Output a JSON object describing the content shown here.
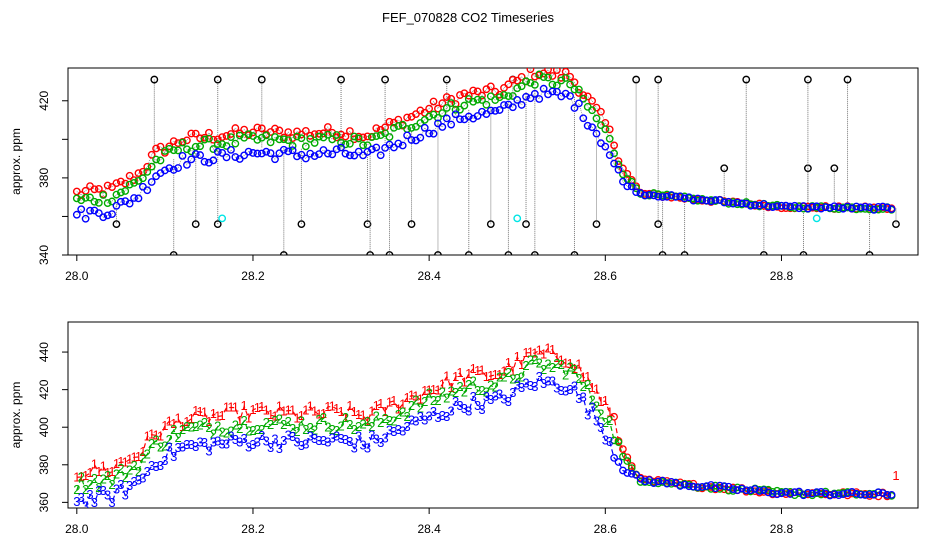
{
  "title": "FEF_070828  CO2 Timeseries",
  "colors": {
    "s1": "#ff0000",
    "s2": "#00aa00",
    "s3": "#0000ff",
    "black": "#000000",
    "cyan": "#00e5e5"
  },
  "chart_data": [
    {
      "type": "scatter",
      "ylabel": "approx. ppm",
      "xlim": [
        27.99,
        28.955
      ],
      "ylim": [
        340,
        437
      ],
      "xticks": [
        28.0,
        28.2,
        28.4,
        28.6,
        28.8
      ],
      "xtick_labels": [
        "28.0",
        "28.2",
        "28.4",
        "28.6",
        "28.8"
      ],
      "yticks": [
        340,
        380,
        420
      ],
      "ytick_labels": [
        "340",
        "380",
        "420"
      ],
      "yminor_ticks": [
        360,
        400
      ],
      "x_start": 28.0,
      "x_step": 0.005,
      "count": 186,
      "anchors": [
        [
          28.0,
          364
        ],
        [
          28.04,
          366
        ],
        [
          28.07,
          374
        ],
        [
          28.09,
          385
        ],
        [
          28.12,
          392
        ],
        [
          28.16,
          394
        ],
        [
          28.2,
          396
        ],
        [
          28.25,
          395
        ],
        [
          28.3,
          396
        ],
        [
          28.33,
          394
        ],
        [
          28.36,
          400
        ],
        [
          28.4,
          408
        ],
        [
          28.44,
          415
        ],
        [
          28.48,
          417
        ],
        [
          28.52,
          427
        ],
        [
          28.56,
          425
        ],
        [
          28.585,
          410
        ],
        [
          28.6,
          400
        ],
        [
          28.62,
          380
        ],
        [
          28.64,
          372
        ],
        [
          28.7,
          369
        ],
        [
          28.8,
          365
        ],
        [
          28.95,
          364
        ]
      ],
      "series": [
        {
          "name": "1",
          "offset": 8,
          "noise": 3,
          "color": "red"
        },
        {
          "name": "2",
          "offset": 4,
          "noise": 3,
          "color": "green"
        },
        {
          "name": "3",
          "offset": -3,
          "noise": 3,
          "color": "blue"
        }
      ],
      "black_spikes": [
        {
          "x": 28.045,
          "y": 356
        },
        {
          "x": 28.088,
          "y": 431
        },
        {
          "x": 28.11,
          "y": 340
        },
        {
          "x": 28.135,
          "y": 356
        },
        {
          "x": 28.16,
          "y": 431
        },
        {
          "x": 28.16,
          "y": 356
        },
        {
          "x": 28.21,
          "y": 431
        },
        {
          "x": 28.235,
          "y": 340
        },
        {
          "x": 28.255,
          "y": 356
        },
        {
          "x": 28.3,
          "y": 431
        },
        {
          "x": 28.33,
          "y": 356
        },
        {
          "x": 28.333,
          "y": 340
        },
        {
          "x": 28.35,
          "y": 431
        },
        {
          "x": 28.355,
          "y": 340
        },
        {
          "x": 28.38,
          "y": 356
        },
        {
          "x": 28.41,
          "y": 340
        },
        {
          "x": 28.42,
          "y": 431
        },
        {
          "x": 28.445,
          "y": 340
        },
        {
          "x": 28.47,
          "y": 356
        },
        {
          "x": 28.49,
          "y": 340
        },
        {
          "x": 28.495,
          "y": 431
        },
        {
          "x": 28.51,
          "y": 356
        },
        {
          "x": 28.52,
          "y": 340
        },
        {
          "x": 28.565,
          "y": 340
        },
        {
          "x": 28.59,
          "y": 356
        },
        {
          "x": 28.635,
          "y": 431
        },
        {
          "x": 28.66,
          "y": 431
        },
        {
          "x": 28.66,
          "y": 356
        },
        {
          "x": 28.665,
          "y": 340
        },
        {
          "x": 28.69,
          "y": 340
        },
        {
          "x": 28.735,
          "y": 385
        },
        {
          "x": 28.76,
          "y": 431
        },
        {
          "x": 28.78,
          "y": 340
        },
        {
          "x": 28.825,
          "y": 340
        },
        {
          "x": 28.83,
          "y": 385
        },
        {
          "x": 28.83,
          "y": 431
        },
        {
          "x": 28.86,
          "y": 385
        },
        {
          "x": 28.875,
          "y": 431
        },
        {
          "x": 28.9,
          "y": 340
        },
        {
          "x": 28.93,
          "y": 356
        }
      ],
      "cyan_points": [
        {
          "x": 28.165,
          "y": 359
        },
        {
          "x": 28.5,
          "y": 359
        },
        {
          "x": 28.84,
          "y": 359
        }
      ],
      "side_labels": {
        "left": "",
        "right": ""
      }
    },
    {
      "type": "line",
      "ylabel": "approx. ppm",
      "xlim": [
        27.99,
        28.955
      ],
      "ylim": [
        357,
        456
      ],
      "xticks": [
        28.0,
        28.2,
        28.4,
        28.6,
        28.8
      ],
      "xtick_labels": [
        "28.0",
        "28.2",
        "28.4",
        "28.6",
        "28.8"
      ],
      "yticks": [
        360,
        380,
        400,
        420,
        440
      ],
      "ytick_labels": [
        "360",
        "380",
        "400",
        "420",
        "440"
      ],
      "x_start": 28.0,
      "x_step": 0.005,
      "count": 186,
      "anchors": [
        [
          28.0,
          364
        ],
        [
          28.04,
          366
        ],
        [
          28.07,
          374
        ],
        [
          28.09,
          385
        ],
        [
          28.12,
          392
        ],
        [
          28.16,
          394
        ],
        [
          28.2,
          396
        ],
        [
          28.25,
          395
        ],
        [
          28.3,
          396
        ],
        [
          28.33,
          394
        ],
        [
          28.36,
          400
        ],
        [
          28.4,
          408
        ],
        [
          28.44,
          415
        ],
        [
          28.48,
          417
        ],
        [
          28.52,
          427
        ],
        [
          28.56,
          425
        ],
        [
          28.585,
          410
        ],
        [
          28.6,
          400
        ],
        [
          28.62,
          380
        ],
        [
          28.64,
          372
        ],
        [
          28.7,
          369
        ],
        [
          28.8,
          365
        ],
        [
          28.95,
          364
        ]
      ],
      "series": [
        {
          "name": "1",
          "offset": 12,
          "noise": 4,
          "color": "red"
        },
        {
          "name": "2",
          "offset": 6,
          "noise": 4,
          "color": "green"
        },
        {
          "name": "3",
          "offset": -3,
          "noise": 4,
          "color": "blue"
        }
      ],
      "label_threshold": 3,
      "end_label": {
        "x": 28.93,
        "y": 372,
        "text": "1"
      }
    }
  ]
}
